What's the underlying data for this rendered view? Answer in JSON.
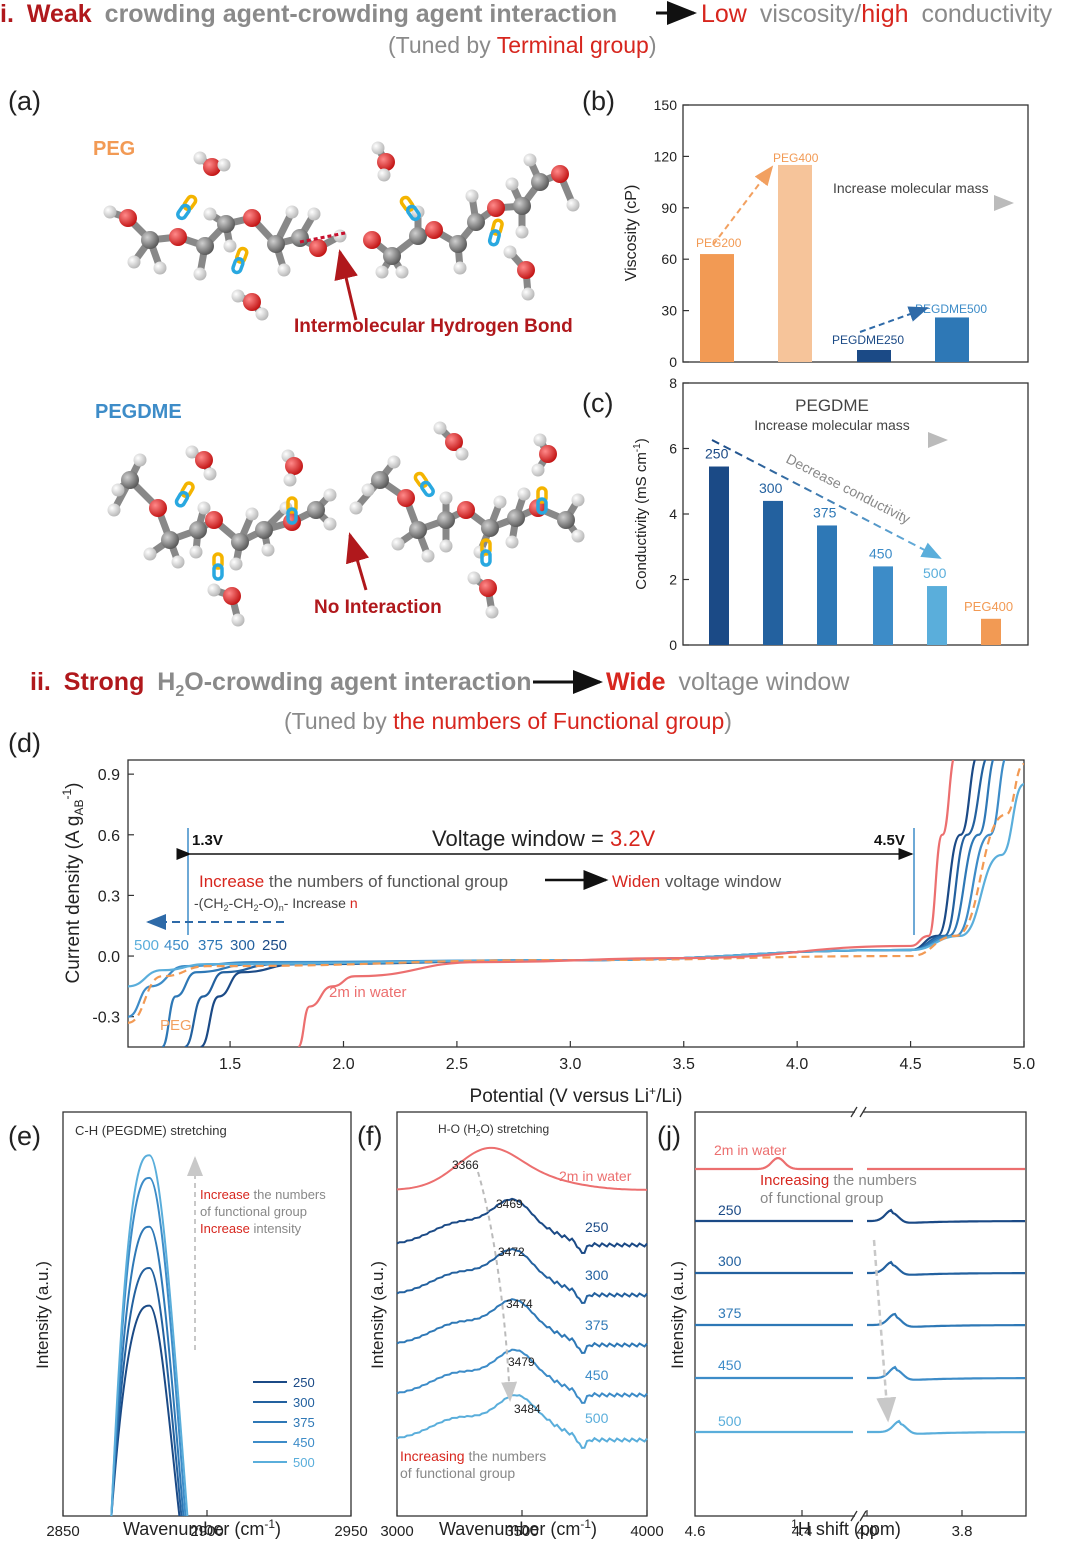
{
  "colors": {
    "dark_red": "#b0181c",
    "red": "#d7261e",
    "grey": "#8a8a8a",
    "orange": "#f29a54",
    "light_orange": "#f6c49a",
    "blue": [
      "#1b4a86",
      "#23619f",
      "#2e78b6",
      "#3d8cc8",
      "#5aaedb"
    ],
    "salmon": "#ec6f6f"
  },
  "header1": {
    "num": "i.",
    "strong": "Weak",
    "t1": "crowding agent-crowding agent interaction",
    "low": "Low",
    "t2": "viscosity/",
    "high": "high",
    "t3": "conductivity",
    "sub_open": "(Tuned by ",
    "sub_red": "Terminal group",
    "sub_close": ")"
  },
  "header2": {
    "num": "ii.",
    "strong": "Strong",
    "t1a": "H",
    "t1sub": "2",
    "t1b": "O-crowding agent interaction",
    "wide": "Wide",
    "t2": "voltage window",
    "sub_open": "(Tuned by ",
    "sub_red": "the numbers of Functional group",
    "sub_close": ")"
  },
  "panel_a": {
    "label": "(a)",
    "peg": "PEG",
    "pegdme": "PEGDME",
    "hbond": "Intermolecular Hydrogen Bond",
    "noint": "No Interaction"
  },
  "panel_b": {
    "label": "(b)",
    "ylabel": "Viscosity (cP)",
    "yticks": [
      "0",
      "30",
      "60",
      "90",
      "120",
      "150"
    ],
    "note": "Increase molecular mass"
  },
  "panel_c": {
    "label": "(c)",
    "ylabel": "Conductivity (mS cm",
    "ylabel_sup": "-1",
    "ylabel_end": ")",
    "yticks": [
      "0",
      "2",
      "4",
      "6",
      "8"
    ],
    "title": "PEGDME",
    "note1": "Increase molecular mass",
    "note2": "Decrease conductivity"
  },
  "panel_d": {
    "label": "(d)",
    "ylabel": "Current density (A g",
    "ylabel_sub": "AB",
    "ylabel_sup": "-1",
    "ylabel_end": ")",
    "xlabel": "Potential (V versus Li",
    "xlabel_sup": "+",
    "xlabel_end": "/Li)",
    "xticks": [
      "1.5",
      "2.0",
      "2.5",
      "3.0",
      "3.5",
      "4.0",
      "4.5",
      "5.0"
    ],
    "yticks": [
      "-0.3",
      "0.0",
      "0.3",
      "0.6",
      "0.9"
    ],
    "v1": "1.3V",
    "v2": "4.5V",
    "window": "Voltage window = ",
    "window_val": "3.2V",
    "inc": "Increase",
    "mid": " the numbers of functional group",
    "widen": "Widen",
    "tail": " voltage window",
    "formula": "-(CH",
    "f2": "2",
    "f3": "-CH",
    "f4": "2",
    "f5": "-O)",
    "f6": "n",
    "f7": "-  Increase ",
    "f8": "n",
    "curve_labels": [
      "500",
      "450",
      "375",
      "300",
      "250"
    ],
    "peg": "PEG",
    "water": "2m in water"
  },
  "panel_e": {
    "label": "(e)",
    "title": "C-H (PEGDME) stretching",
    "ylabel": "Intensity (a.u.)",
    "xlabel": "Wavenumber (cm",
    "xlabel_sup": "-1",
    "xlabel_end": ")",
    "xticks": [
      "2850",
      "2900",
      "2950"
    ],
    "inc1": "Increase",
    "t1": " the numbers",
    "t2": "of functional group",
    "inc2": "Increase",
    "t3": " intensity",
    "legend": [
      "250",
      "300",
      "375",
      "450",
      "500"
    ]
  },
  "panel_f": {
    "label": "(f)",
    "title": "H-O (H",
    "title_sub": "2",
    "title_end": "O) stretching",
    "ylabel": "Intensity (a.u.)",
    "xlabel": "Wavenumber (cm",
    "xlabel_sup": "-1",
    "xlabel_end": ")",
    "xticks": [
      "3000",
      "3500",
      "4000"
    ],
    "peaks": [
      "3366",
      "3469",
      "3472",
      "3474",
      "3479",
      "3484"
    ],
    "series": [
      "2m in water",
      "250",
      "300",
      "375",
      "450",
      "500"
    ],
    "note_red": "Increasing",
    "note1": " the numbers",
    "note2": "of functional group"
  },
  "panel_j": {
    "label": "(j)",
    "ylabel": "Intensity (a.u.)",
    "xlabel_sup": "1",
    "xlabel": "H shift (ppm)",
    "xticks": [
      "4.6",
      "4.4",
      "4.0",
      "3.8"
    ],
    "series": [
      "2m in water",
      "250",
      "300",
      "375",
      "450",
      "500"
    ],
    "note_red": "Increasing",
    "note1": " the numbers",
    "note2": "of functional group"
  },
  "chart_data": [
    {
      "type": "bar",
      "panel": "b",
      "categories": [
        "PEG200",
        "PEG400",
        "PEGDME250",
        "PEGDME500"
      ],
      "values": [
        63,
        115,
        7,
        26
      ],
      "ylabel": "Viscosity (cP)",
      "ylim": [
        0,
        150
      ]
    },
    {
      "type": "bar",
      "panel": "c",
      "categories": [
        "250",
        "300",
        "375",
        "450",
        "500",
        "PEG400"
      ],
      "values": [
        5.45,
        4.4,
        3.65,
        2.4,
        1.8,
        0.8
      ],
      "ylabel": "Conductivity (mS cm-1)",
      "ylim": [
        0,
        8
      ]
    },
    {
      "type": "line",
      "panel": "d",
      "xlabel": "Potential (V versus Li+/Li)",
      "ylabel": "Current density (A gAB-1)",
      "xlim": [
        1.05,
        5.0
      ],
      "ylim": [
        -0.45,
        0.97
      ],
      "series": [
        {
          "name": "250",
          "values": [
            [
              1.37,
              -0.45
            ],
            [
              1.45,
              -0.2
            ],
            [
              1.55,
              -0.08
            ],
            [
              1.8,
              -0.04
            ],
            [
              3,
              -0.02
            ],
            [
              4.5,
              0.03
            ],
            [
              4.62,
              0.1
            ],
            [
              4.72,
              0.6
            ],
            [
              4.8,
              1.0
            ]
          ]
        },
        {
          "name": "300",
          "values": [
            [
              1.3,
              -0.45
            ],
            [
              1.38,
              -0.2
            ],
            [
              1.47,
              -0.08
            ],
            [
              1.7,
              -0.04
            ],
            [
              3,
              -0.02
            ],
            [
              4.5,
              0.03
            ],
            [
              4.65,
              0.1
            ],
            [
              4.75,
              0.6
            ],
            [
              4.85,
              1.0
            ]
          ]
        },
        {
          "name": "375",
          "values": [
            [
              1.2,
              -0.45
            ],
            [
              1.26,
              -0.2
            ],
            [
              1.35,
              -0.08
            ],
            [
              1.6,
              -0.04
            ],
            [
              3,
              -0.02
            ],
            [
              4.5,
              0.03
            ],
            [
              4.67,
              0.1
            ],
            [
              4.8,
              0.6
            ],
            [
              4.88,
              1.0
            ]
          ]
        },
        {
          "name": "450",
          "values": [
            [
              1.05,
              -0.3
            ],
            [
              1.15,
              -0.15
            ],
            [
              1.3,
              -0.05
            ],
            [
              1.6,
              -0.03
            ],
            [
              3,
              -0.02
            ],
            [
              4.5,
              0.03
            ],
            [
              4.7,
              0.1
            ],
            [
              4.85,
              0.6
            ],
            [
              4.93,
              1.0
            ]
          ]
        },
        {
          "name": "500",
          "values": [
            [
              1.05,
              -0.15
            ],
            [
              1.2,
              -0.07
            ],
            [
              1.4,
              -0.04
            ],
            [
              3,
              -0.02
            ],
            [
              4.5,
              0.03
            ],
            [
              4.72,
              0.1
            ],
            [
              4.9,
              0.5
            ],
            [
              5.0,
              0.85
            ]
          ]
        },
        {
          "name": "PEG",
          "values": [
            [
              1.05,
              -0.33
            ],
            [
              1.2,
              -0.1
            ],
            [
              1.4,
              -0.05
            ],
            [
              3,
              -0.02
            ],
            [
              4.5,
              0.0
            ],
            [
              4.7,
              0.1
            ],
            [
              4.92,
              0.7
            ],
            [
              5.0,
              0.95
            ]
          ]
        },
        {
          "name": "2m in water",
          "values": [
            [
              1.8,
              -0.45
            ],
            [
              1.85,
              -0.25
            ],
            [
              1.95,
              -0.15
            ],
            [
              2.05,
              -0.1
            ],
            [
              2.6,
              -0.03
            ],
            [
              3.5,
              -0.01
            ],
            [
              4.5,
              0.05
            ],
            [
              4.58,
              0.1
            ],
            [
              4.64,
              0.6
            ],
            [
              4.7,
              1.0
            ]
          ]
        }
      ]
    },
    {
      "type": "line",
      "panel": "e",
      "xlabel": "Wavenumber (cm-1)",
      "ylabel": "Intensity (a.u.)",
      "xlim": [
        2850,
        2950
      ],
      "series": [
        {
          "name": "250",
          "peak_x": 2880,
          "peak": 0.56
        },
        {
          "name": "300",
          "peak_x": 2880,
          "peak": 0.66
        },
        {
          "name": "375",
          "peak_x": 2880,
          "peak": 0.77
        },
        {
          "name": "450",
          "peak_x": 2880,
          "peak": 0.9
        },
        {
          "name": "500",
          "peak_x": 2880,
          "peak": 0.96
        }
      ]
    },
    {
      "type": "line",
      "panel": "f",
      "xlabel": "Wavenumber (cm-1)",
      "ylabel": "Intensity (a.u.)",
      "xlim": [
        3000,
        4000
      ],
      "series": [
        {
          "name": "2m in water",
          "peak_x": 3366
        },
        {
          "name": "250",
          "peak_x": 3469
        },
        {
          "name": "300",
          "peak_x": 3472
        },
        {
          "name": "375",
          "peak_x": 3474
        },
        {
          "name": "450",
          "peak_x": 3479
        },
        {
          "name": "500",
          "peak_x": 3484
        }
      ]
    },
    {
      "type": "line",
      "panel": "j",
      "xlabel": "1H shift (ppm)",
      "ylabel": "Intensity (a.u.)",
      "xlim": [
        4.6,
        3.7
      ],
      "series": [
        {
          "name": "2m in water",
          "peak_x": 4.47
        },
        {
          "name": "250",
          "peak_x": 3.92
        },
        {
          "name": "300",
          "peak_x": 3.92
        },
        {
          "name": "375",
          "peak_x": 3.91
        },
        {
          "name": "450",
          "peak_x": 3.91
        },
        {
          "name": "500",
          "peak_x": 3.9
        }
      ]
    }
  ]
}
